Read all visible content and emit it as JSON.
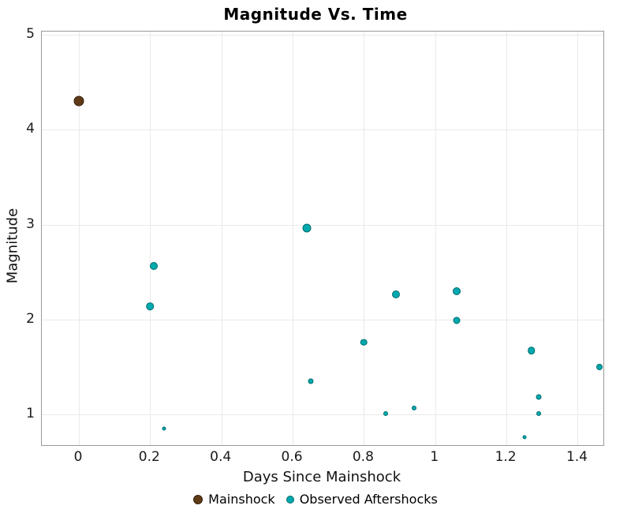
{
  "chart_data": {
    "type": "scatter",
    "title": "Magnitude Vs. Time",
    "xlabel": "Days Since Mainshock",
    "ylabel": "Magnitude",
    "xlim": [
      -0.104,
      1.472
    ],
    "ylim": [
      0.676,
      5.033
    ],
    "grid": true,
    "grid_color": "#e9e9e9",
    "panel_border_color": "#9a9a9a",
    "background_color": "#ffffff",
    "legend_position": "bottom",
    "xticks": {
      "values": [
        0,
        0.2,
        0.4,
        0.6,
        0.8,
        1,
        1.2,
        1.4
      ],
      "labels": [
        "0",
        "0.2",
        "0.4",
        "0.6",
        "0.8",
        "1",
        "1.2",
        "1.4"
      ]
    },
    "yticks": {
      "values": [
        1,
        2,
        3,
        4,
        5
      ],
      "labels": [
        "1",
        "2",
        "3",
        "4",
        "5"
      ]
    },
    "series": [
      {
        "name": "Mainshock",
        "color": "#5e3a16",
        "edge_color": "#35200a",
        "points": [
          {
            "x": 0.0,
            "y": 4.3,
            "r": 6.5
          }
        ]
      },
      {
        "name": "Observed Aftershocks",
        "color": "#00a9ad",
        "edge_color": "#006b6e",
        "points": [
          {
            "x": 0.2,
            "y": 2.14,
            "r": 4.8
          },
          {
            "x": 0.21,
            "y": 2.56,
            "r": 5.0
          },
          {
            "x": 0.24,
            "y": 0.85,
            "r": 2.5
          },
          {
            "x": 0.64,
            "y": 2.96,
            "r": 5.5
          },
          {
            "x": 0.65,
            "y": 1.35,
            "r": 3.5
          },
          {
            "x": 0.8,
            "y": 1.76,
            "r": 4.3
          },
          {
            "x": 0.86,
            "y": 1.01,
            "r": 3.0
          },
          {
            "x": 0.89,
            "y": 2.26,
            "r": 5.0
          },
          {
            "x": 0.94,
            "y": 1.07,
            "r": 3.0
          },
          {
            "x": 1.06,
            "y": 2.3,
            "r": 5.0
          },
          {
            "x": 1.06,
            "y": 1.99,
            "r": 4.5
          },
          {
            "x": 1.25,
            "y": 0.76,
            "r": 2.5
          },
          {
            "x": 1.27,
            "y": 1.67,
            "r": 4.8
          },
          {
            "x": 1.29,
            "y": 1.18,
            "r": 3.5
          },
          {
            "x": 1.29,
            "y": 1.01,
            "r": 3.0
          },
          {
            "x": 1.46,
            "y": 1.5,
            "r": 4.0
          }
        ]
      }
    ]
  }
}
